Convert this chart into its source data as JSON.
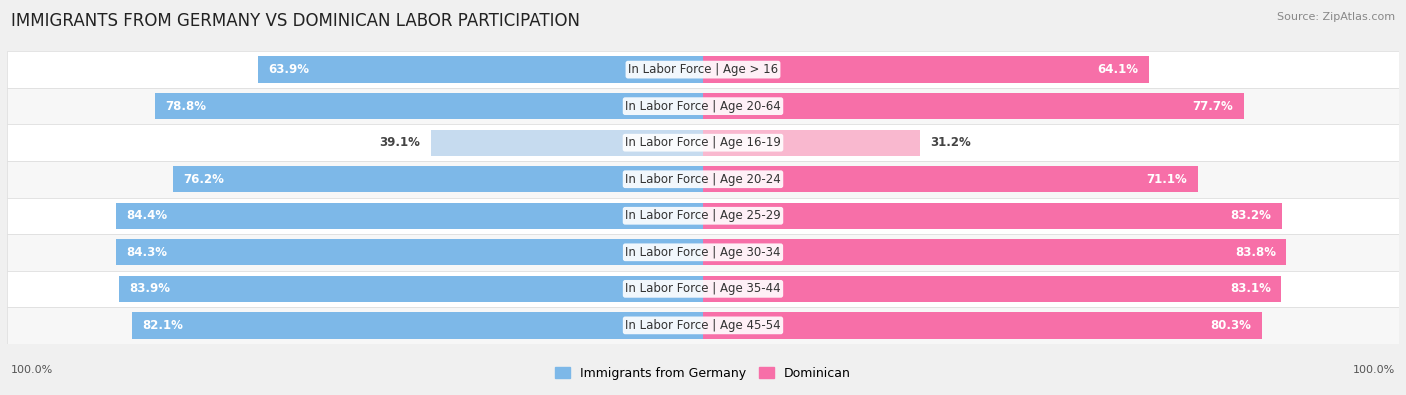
{
  "title": "IMMIGRANTS FROM GERMANY VS DOMINICAN LABOR PARTICIPATION",
  "source": "Source: ZipAtlas.com",
  "categories": [
    "In Labor Force | Age > 16",
    "In Labor Force | Age 20-64",
    "In Labor Force | Age 16-19",
    "In Labor Force | Age 20-24",
    "In Labor Force | Age 25-29",
    "In Labor Force | Age 30-34",
    "In Labor Force | Age 35-44",
    "In Labor Force | Age 45-54"
  ],
  "germany_values": [
    63.9,
    78.8,
    39.1,
    76.2,
    84.4,
    84.3,
    83.9,
    82.1
  ],
  "dominican_values": [
    64.1,
    77.7,
    31.2,
    71.1,
    83.2,
    83.8,
    83.1,
    80.3
  ],
  "germany_color": "#7db8e8",
  "germany_light_color": "#c6dbef",
  "dominican_color": "#f76fa8",
  "dominican_light_color": "#f9b8cf",
  "bar_height": 0.72,
  "max_val": 100.0,
  "bg_color": "#f0f0f0",
  "row_bg_even": "#ffffff",
  "row_bg_odd": "#f7f7f7",
  "label_fontsize": 8.5,
  "title_fontsize": 12,
  "value_fontsize": 8.5,
  "source_fontsize": 8
}
